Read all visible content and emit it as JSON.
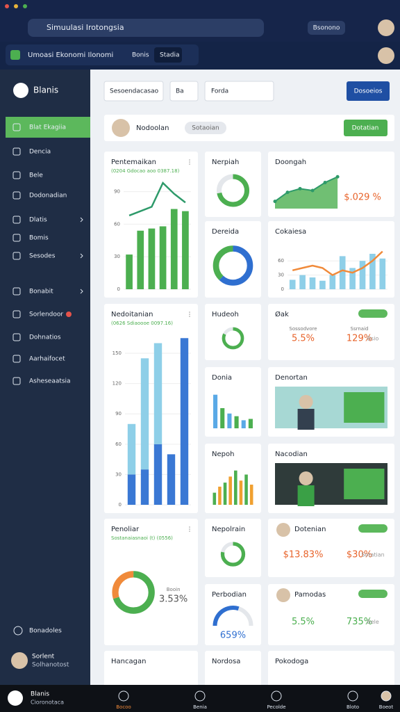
{
  "window": {
    "search": "Simuulasi Irotongsia",
    "account": "Bsonono"
  },
  "tabs": {
    "title": "Umoasi Ekonomi Ilonomi",
    "items": [
      "Bonis",
      "Stadia"
    ]
  },
  "sidebar": {
    "brand": "Blanis",
    "items": [
      "Blat Ekagiia",
      "Dencia",
      "Bele",
      "Dodonadian",
      "Dlatis",
      "Bomis",
      "Sesodes",
      "Bonabit",
      "Sorlendoor",
      "Dohnatios",
      "Aarhaifocet",
      "Asheseaatsia"
    ],
    "footer": "Bonadoles",
    "user": {
      "name": "Sorlent",
      "role": "Solhanotost"
    }
  },
  "toolbar": {
    "filters": [
      "Sesoendacasao",
      "Ba"
    ],
    "search": "Forda",
    "button": "Dosoeios"
  },
  "profile": {
    "name": "Nodoolan",
    "tag": "Sotaoian",
    "button": "Dotatian"
  },
  "cards": [
    {
      "title": "Pentemaikan",
      "subtitle": "(0204 Gdocao aoo 0387.18)",
      "chart": {
        "type": "bar",
        "ylim": [
          0,
          100
        ],
        "yticks": [
          0,
          30,
          60,
          90
        ],
        "colors": [
          "#4caf50"
        ],
        "values": [
          32,
          54,
          56,
          58,
          74,
          72
        ],
        "line": {
          "color": "#2e9a6a",
          "values": [
            68,
            72,
            76,
            98,
            88,
            80
          ]
        }
      }
    },
    {
      "title": "Nerpiah",
      "chart": {
        "type": "donut",
        "values": [
          72
        ],
        "colors": [
          "#4caf50"
        ]
      }
    },
    {
      "title": "Dereida",
      "chart": {
        "type": "donut",
        "values": [
          62,
          38
        ],
        "colors": [
          "#2f6fd0",
          "#4caf50"
        ]
      }
    },
    {
      "title": "Doongah",
      "chart": {
        "type": "line",
        "ylim": [
          0,
          100
        ],
        "color": "#2e9a6a",
        "values": [
          20,
          45,
          55,
          50,
          72,
          88
        ]
      },
      "stats": [
        {
          "text": "$.029 %",
          "color": "#e8632a"
        }
      ]
    },
    {
      "title": "Cokaiesa",
      "chart": {
        "type": "bar",
        "ylim": [
          0,
          100
        ],
        "yticks": [
          0,
          30,
          60
        ],
        "colors": [
          "#8ecfe8"
        ],
        "values": [
          20,
          30,
          25,
          18,
          30,
          70,
          45,
          60,
          75,
          65
        ],
        "line": {
          "color": "#f08a3a",
          "values": [
            40,
            45,
            50,
            45,
            30,
            40,
            35,
            45,
            60,
            80
          ]
        }
      }
    },
    {
      "title": "Nedoitanian",
      "subtitle": "(0626 Sdiaoooe 0097.16)",
      "chart": {
        "type": "stacked",
        "ylim": [
          0,
          170
        ],
        "yticks": [
          0,
          30,
          60,
          90,
          120,
          150
        ],
        "series": [
          {
            "color": "#3a78d4",
            "values": [
              30,
              35,
              60,
              50,
              165
            ]
          },
          {
            "color": "#8ecfe8",
            "values": [
              50,
              110,
              100,
              0,
              0
            ]
          }
        ]
      }
    },
    {
      "title": "Hudeoh",
      "chart": {
        "type": "donut",
        "values": [
          82
        ],
        "colors": [
          "#4caf50"
        ]
      }
    },
    {
      "title": "Donia",
      "chart": {
        "type": "bar",
        "ylim": [
          0,
          60
        ],
        "colors": [
          "#5aa9e6",
          "#4caf50"
        ],
        "values": [
          50,
          30,
          22,
          18,
          12,
          14
        ]
      }
    },
    {
      "title": "Nepoh",
      "chart": {
        "type": "bar",
        "ylim": [
          0,
          100
        ],
        "colors": [
          "#4caf50",
          "#f0a030"
        ],
        "values": [
          30,
          45,
          55,
          70,
          85,
          60,
          75,
          50
        ]
      }
    },
    {
      "title": "Øak",
      "stats": [
        {
          "label": "Sossodvore",
          "text": "5.5%",
          "color": "#e8632a"
        },
        {
          "label": "Ssrnaid",
          "text": "129%",
          "color": "#e8632a"
        }
      ],
      "note": "Bsio"
    },
    {
      "title": "Denortan",
      "image": "teal"
    },
    {
      "title": "Nacodian",
      "image": "dark"
    },
    {
      "title": "Penoliar",
      "subtitle": "Sostanaiasnaoi (t) (0556)",
      "chart": {
        "type": "donut",
        "values": [
          70,
          30
        ],
        "colors": [
          "#4caf50",
          "#f08a3a"
        ]
      },
      "stats": [
        {
          "label": "Booin",
          "text": "3.53%",
          "color": "#555555"
        }
      ]
    },
    {
      "title": "Nepolrain",
      "chart": {
        "type": "donut",
        "values": [
          78
        ],
        "colors": [
          "#4caf50"
        ]
      }
    },
    {
      "title": "Perbodian",
      "chart": {
        "type": "gauge",
        "values": [
          60
        ],
        "colors": [
          "#2f6fd0"
        ]
      },
      "stats": [
        {
          "text": "659%",
          "color": "#2f6fd0"
        }
      ]
    },
    {
      "title": "Dotenian",
      "stats": [
        {
          "text": "$13.83%",
          "color": "#e8632a"
        },
        {
          "text": "$30%",
          "color": "#e8632a"
        }
      ],
      "note": "Sotatian",
      "avatar": true
    },
    {
      "title": "Pamodas",
      "stats": [
        {
          "text": "5.5%",
          "color": "#4caf50"
        },
        {
          "text": "735%",
          "color": "#4caf50"
        }
      ],
      "note": "Bele",
      "avatar": true
    },
    {
      "title": "Hancagan"
    },
    {
      "title": "Nordosa"
    },
    {
      "title": "Pokodoga"
    }
  ],
  "bottom_nav": {
    "brand": "Blanis",
    "subtitle": "Cioronotaca",
    "items": [
      "Bocoo",
      "Benia",
      "Pecolde",
      "Bloto",
      "Boeot"
    ]
  }
}
